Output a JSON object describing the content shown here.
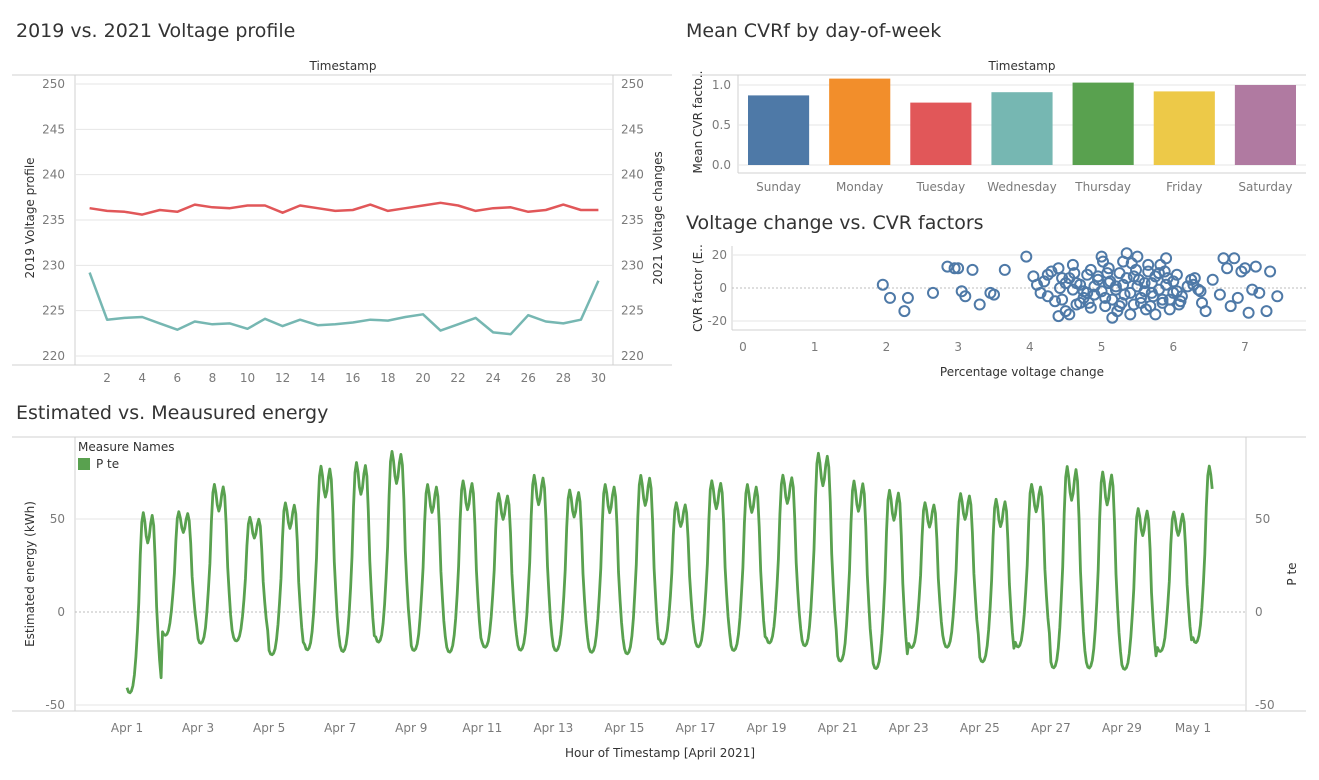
{
  "titles": {
    "voltage": "2019 vs. 2021 Voltage profile",
    "cvr": "Mean CVRf by day-of-week",
    "scatter": "Voltage change vs. CVR factors",
    "energy": "Estimated vs. Meausured energy"
  },
  "legend": {
    "title": "Measure Names",
    "item": "P te",
    "color": "#59a14f"
  },
  "chart_data": [
    {
      "type": "line",
      "title": "2019 vs. 2021 Voltage profile",
      "xlabel": "Timestamp",
      "ylabel": "2019 Voltage profile",
      "y2label": "2021 Voltage changes",
      "ylim": [
        220,
        250
      ],
      "yticks": [
        "250",
        "245",
        "240",
        "235",
        "230",
        "225",
        "220"
      ],
      "xticks": [
        "2",
        "4",
        "6",
        "8",
        "10",
        "12",
        "14",
        "16",
        "18",
        "20",
        "22",
        "24",
        "26",
        "28",
        "30"
      ],
      "x": [
        1,
        2,
        3,
        4,
        5,
        6,
        7,
        8,
        9,
        10,
        11,
        12,
        13,
        14,
        15,
        16,
        17,
        18,
        19,
        20,
        21,
        22,
        23,
        24,
        25,
        26,
        27,
        28,
        29,
        30
      ],
      "series": [
        {
          "color": "#e15759",
          "values": [
            236.3,
            236.0,
            235.9,
            235.6,
            236.1,
            235.9,
            236.7,
            236.4,
            236.3,
            236.6,
            236.6,
            235.8,
            236.6,
            236.3,
            236.0,
            236.1,
            236.7,
            236.0,
            236.3,
            236.6,
            236.9,
            236.6,
            236.0,
            236.3,
            236.4,
            235.9,
            236.1,
            236.7,
            236.1,
            236.1
          ]
        },
        {
          "color": "#76b7b2",
          "values": [
            229.2,
            224.0,
            224.2,
            224.3,
            223.6,
            222.9,
            223.8,
            223.5,
            223.6,
            223.0,
            224.1,
            223.3,
            224.0,
            223.4,
            223.5,
            223.7,
            224.0,
            223.9,
            224.3,
            224.6,
            222.8,
            223.5,
            224.2,
            222.6,
            222.4,
            224.5,
            223.8,
            223.6,
            224.0,
            228.3
          ]
        }
      ]
    },
    {
      "type": "bar",
      "title": "Mean CVRf by day-of-week",
      "xlabel": "Timestamp",
      "ylabel": "Mean CVR facto..",
      "ylim": [
        -0.12,
        1.12
      ],
      "yticks": [
        "1.0",
        "0.5",
        "0.0"
      ],
      "categories": [
        "Sunday",
        "Monday",
        "Tuesday",
        "Wednesday",
        "Thursday",
        "Friday",
        "Saturday"
      ],
      "values": [
        0.87,
        1.08,
        0.78,
        0.91,
        1.03,
        0.92,
        1.0
      ],
      "colors": [
        "#4e79a7",
        "#f28e2b",
        "#e15759",
        "#76b7b2",
        "#59a14f",
        "#edc948",
        "#b07aa1"
      ]
    },
    {
      "type": "scatter",
      "title": "Voltage change vs. CVR factors",
      "xlabel": "Percentage voltage change",
      "ylabel": "CVR factor (E..",
      "xlim": [
        -0.1,
        7.9
      ],
      "ylim": [
        -24,
        24
      ],
      "xticks": [
        "0",
        "1",
        "2",
        "3",
        "4",
        "5",
        "6",
        "7"
      ],
      "yticks": [
        "20",
        "0",
        "-20"
      ],
      "color": "#4e79a7",
      "points": [
        [
          1.95,
          2
        ],
        [
          2.05,
          -6
        ],
        [
          2.25,
          -14
        ],
        [
          2.3,
          -6
        ],
        [
          2.65,
          -3
        ],
        [
          2.85,
          13
        ],
        [
          2.95,
          12
        ],
        [
          3.0,
          12
        ],
        [
          3.05,
          -2
        ],
        [
          3.1,
          -5
        ],
        [
          3.2,
          11
        ],
        [
          3.3,
          -10
        ],
        [
          3.45,
          -3
        ],
        [
          3.5,
          -4
        ],
        [
          3.65,
          11
        ],
        [
          3.95,
          19
        ],
        [
          4.05,
          7
        ],
        [
          4.1,
          2
        ],
        [
          4.15,
          -3
        ],
        [
          4.2,
          4
        ],
        [
          4.25,
          -5
        ],
        [
          4.3,
          10
        ],
        [
          4.35,
          -8
        ],
        [
          4.4,
          -17
        ],
        [
          4.45,
          6
        ],
        [
          4.5,
          -14
        ],
        [
          4.55,
          -16
        ],
        [
          4.6,
          14
        ],
        [
          4.65,
          3
        ],
        [
          4.7,
          -9
        ],
        [
          4.75,
          -2
        ],
        [
          4.8,
          8
        ],
        [
          4.85,
          -12
        ],
        [
          4.9,
          -4
        ],
        [
          4.95,
          5
        ],
        [
          5.0,
          19
        ],
        [
          5.05,
          -6
        ],
        [
          5.1,
          12
        ],
        [
          5.15,
          -18
        ],
        [
          5.2,
          1
        ],
        [
          5.25,
          -11
        ],
        [
          5.3,
          16
        ],
        [
          5.35,
          21
        ],
        [
          5.4,
          -16
        ],
        [
          5.45,
          7
        ],
        [
          5.5,
          19
        ],
        [
          5.55,
          -9
        ],
        [
          5.6,
          3
        ],
        [
          5.65,
          14
        ],
        [
          5.7,
          -3
        ],
        [
          5.75,
          -16
        ],
        [
          5.8,
          9
        ],
        [
          5.85,
          -7
        ],
        [
          5.9,
          18
        ],
        [
          5.95,
          -13
        ],
        [
          6.0,
          4
        ],
        [
          6.05,
          -2
        ],
        [
          6.1,
          -8
        ],
        [
          6.2,
          1
        ],
        [
          6.35,
          -1
        ],
        [
          6.45,
          -14
        ],
        [
          6.55,
          5
        ],
        [
          6.65,
          -4
        ],
        [
          6.7,
          18
        ],
        [
          6.75,
          12
        ],
        [
          6.8,
          -11
        ],
        [
          6.85,
          18
        ],
        [
          6.9,
          -6
        ],
        [
          6.95,
          10
        ],
        [
          7.0,
          12
        ],
        [
          7.05,
          -15
        ],
        [
          7.1,
          -1
        ],
        [
          7.15,
          13
        ],
        [
          7.2,
          -3
        ],
        [
          7.3,
          -14
        ],
        [
          7.35,
          10
        ],
        [
          7.45,
          -5
        ],
        [
          4.5,
          3
        ],
        [
          4.6,
          -1
        ],
        [
          4.7,
          2
        ],
        [
          4.8,
          -3
        ],
        [
          4.9,
          1
        ],
        [
          5.0,
          -2
        ],
        [
          5.1,
          3
        ],
        [
          5.2,
          -1
        ],
        [
          5.3,
          2
        ],
        [
          5.4,
          -3
        ],
        [
          5.5,
          1
        ],
        [
          5.6,
          -2
        ],
        [
          5.7,
          3
        ],
        [
          5.8,
          -1
        ],
        [
          5.9,
          2
        ],
        [
          6.0,
          -3
        ],
        [
          4.55,
          6
        ],
        [
          4.75,
          -6
        ],
        [
          4.95,
          7
        ],
        [
          5.15,
          -7
        ],
        [
          5.35,
          6
        ],
        [
          5.55,
          -6
        ],
        [
          5.75,
          7
        ],
        [
          5.95,
          -7
        ],
        [
          4.65,
          -10
        ],
        [
          4.85,
          11
        ],
        [
          5.05,
          -11
        ],
        [
          5.25,
          9
        ],
        [
          5.45,
          -10
        ],
        [
          5.65,
          10
        ],
        [
          5.85,
          -9
        ],
        [
          6.05,
          8
        ],
        [
          5.02,
          16
        ],
        [
          5.22,
          -14
        ],
        [
          5.42,
          15
        ],
        [
          5.62,
          -13
        ],
        [
          5.82,
          14
        ],
        [
          6.12,
          -5
        ],
        [
          6.25,
          5
        ],
        [
          4.25,
          8
        ],
        [
          4.4,
          12
        ],
        [
          4.45,
          -7
        ],
        [
          6.3,
          6
        ],
        [
          6.4,
          -9
        ],
        [
          5.12,
          4
        ],
        [
          5.32,
          -4
        ],
        [
          5.52,
          5
        ],
        [
          5.72,
          -5
        ],
        [
          5.92,
          6
        ],
        [
          4.42,
          0
        ],
        [
          4.62,
          9
        ],
        [
          4.82,
          -9
        ],
        [
          5.08,
          9
        ],
        [
          5.28,
          -9
        ],
        [
          5.48,
          11
        ],
        [
          5.68,
          -11
        ],
        [
          5.88,
          10
        ],
        [
          6.08,
          -10
        ],
        [
          6.28,
          2
        ],
        [
          6.38,
          -2
        ]
      ]
    },
    {
      "type": "line",
      "title": "Estimated vs. Meausured energy",
      "xlabel": "Hour of Timestamp [April 2021]",
      "ylabel": "Estimated energy (kWh)",
      "y2label": "P te",
      "ylim": [
        -55,
        95
      ],
      "yticks": [
        "50",
        "0",
        "-50"
      ],
      "xlim": [
        0.45,
        31.0
      ],
      "xticks": [
        "Apr 1",
        "Apr 3",
        "Apr 5",
        "Apr 7",
        "Apr 9",
        "Apr 11",
        "Apr 13",
        "Apr 15",
        "Apr 17",
        "Apr 19",
        "Apr 21",
        "Apr 23",
        "Apr 25",
        "Apr 27",
        "Apr 29",
        "May 1"
      ],
      "series": [
        {
          "name": "P te",
          "color": "#59a14f",
          "daily_peaks": [
            55,
            55,
            70,
            52,
            60,
            80,
            82,
            88,
            70,
            72,
            65,
            75,
            67,
            70,
            75,
            60,
            72,
            70,
            75,
            87,
            72,
            67,
            60,
            65,
            62,
            70,
            80,
            77,
            57,
            55,
            80
          ],
          "daily_mins": [
            -47,
            -15,
            -20,
            -18,
            -26,
            -24,
            -25,
            -20,
            -24,
            -25,
            -22,
            -24,
            -24,
            -25,
            -26,
            -20,
            -22,
            -24,
            -20,
            -22,
            -30,
            -34,
            -22,
            -22,
            -30,
            -22,
            -34,
            -34,
            -34,
            -24,
            -20
          ]
        }
      ]
    }
  ]
}
